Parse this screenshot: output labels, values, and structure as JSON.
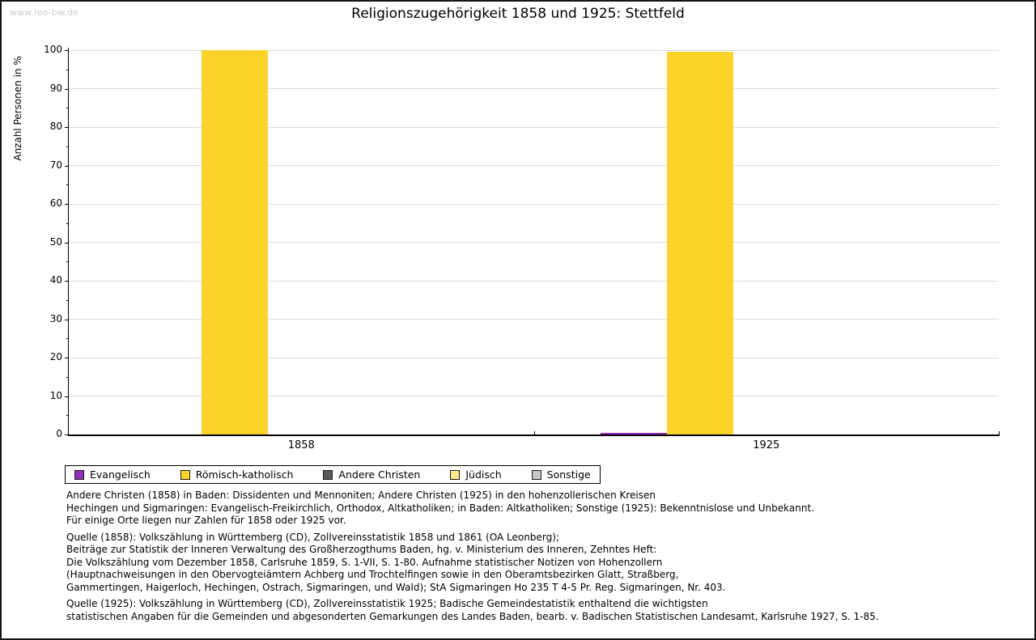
{
  "watermark": "www.leo-bw.de",
  "title": "Religionszugehörigkeit 1858 und 1925: Stettfeld",
  "chart_data": {
    "type": "bar",
    "title": "Religionszugehörigkeit 1858 und 1925: Stettfeld",
    "xlabel": "",
    "ylabel": "Anzahl Personen in %",
    "categories": [
      "1858",
      "1925"
    ],
    "series": [
      {
        "name": "Evangelisch",
        "color": "#922FB5",
        "values": [
          0,
          0.4
        ]
      },
      {
        "name": "Römisch-katholisch",
        "color": "#FCD32B",
        "values": [
          100,
          99.6
        ]
      },
      {
        "name": "Andere Christen",
        "color": "#595959",
        "values": [
          0,
          0
        ]
      },
      {
        "name": "Jüdisch",
        "color": "#FBE88D",
        "values": [
          0,
          0
        ]
      },
      {
        "name": "Sonstige",
        "color": "#C5C5C5",
        "values": [
          0,
          0
        ]
      }
    ],
    "ylim": [
      0,
      100
    ],
    "y_major_step": 10,
    "y_minor_step": 5,
    "grid": true,
    "legend_position": "bottom-left",
    "gridline_color": "#dcdcdc"
  },
  "notes": {
    "p1": [
      "Andere Christen (1858) in Baden: Dissidenten und Mennoniten; Andere Christen (1925) in den hohenzollerischen Kreisen",
      "Hechingen und Sigmaringen: Evangelisch-Freikirchlich, Orthodox, Altkatholiken; in Baden: Altkatholiken; Sonstige (1925): Bekenntnislose und Unbekannt.",
      "Für einige Orte liegen nur Zahlen für 1858 oder 1925 vor."
    ],
    "p2": [
      "Quelle (1858): Volkszählung in Württemberg (CD), Zollvereinsstatistik 1858 und 1861 (OA Leonberg);",
      "Beiträge zur Statistik der Inneren Verwaltung des Großherzogthums Baden, hg. v. Ministerium des Inneren, Zehntes Heft:",
      "Die Volkszählung vom Dezember 1858, Carlsruhe 1859, S. 1-VII, S. 1-80. Aufnahme statistischer Notizen von Hohenzollern",
      "(Hauptnachweisungen in den Obervogteiämtern Achberg und Trochtelfingen sowie in den Oberamtsbezirken Glatt, Straßberg,",
      "Gammertingen, Haigerloch, Hechingen, Ostrach, Sigmaringen, und Wald); StA Sigmaringen Ho 235 T 4-5 Pr. Reg. Sigmaringen, Nr. 403."
    ],
    "p3": [
      "Quelle (1925): Volkszählung in Württemberg (CD), Zollvereinsstatistik 1925; Badische Gemeindestatistik enthaltend die wichtigsten",
      "statistischen Angaben für die Gemeinden und abgesonderten Gemarkungen des Landes Baden, bearb. v. Badischen Statistischen Landesamt, Karlsruhe 1927, S. 1-85."
    ]
  }
}
